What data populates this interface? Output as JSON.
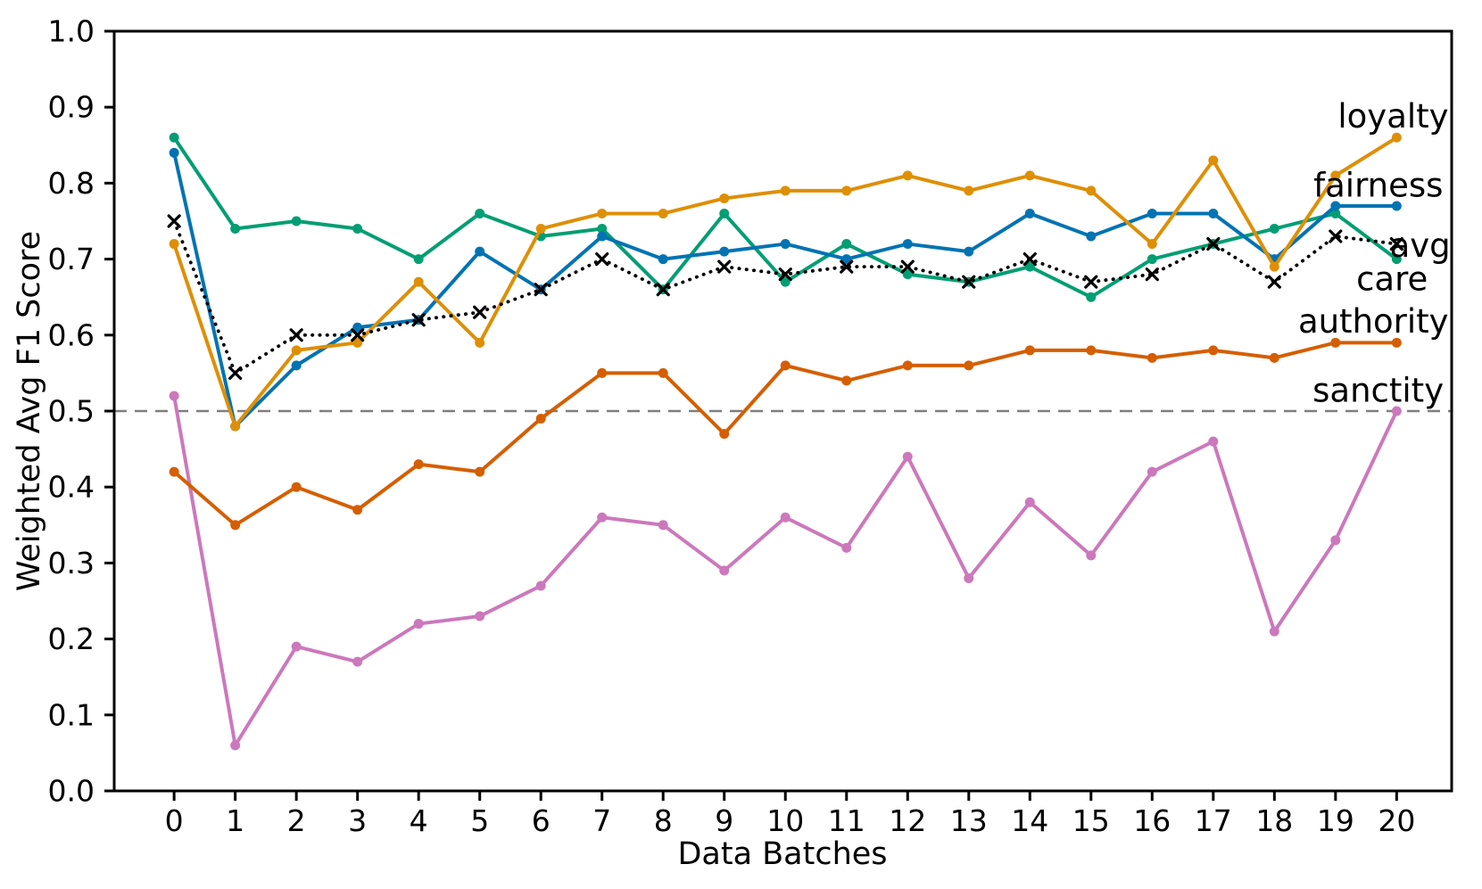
{
  "figure": {
    "background": "#ffffff",
    "spine_color": "#000000"
  },
  "chart_data": {
    "type": "line",
    "title": "",
    "xlabel": "Data Batches",
    "ylabel": "Weighted Avg F1 Score",
    "xlim": [
      -0.98,
      20.9
    ],
    "ylim": [
      0.0,
      1.0
    ],
    "xticks": [
      0,
      1,
      2,
      3,
      4,
      5,
      6,
      7,
      8,
      9,
      10,
      11,
      12,
      13,
      14,
      15,
      16,
      17,
      18,
      19,
      20
    ],
    "yticks": [
      0.0,
      0.1,
      0.2,
      0.3,
      0.4,
      0.5,
      0.6,
      0.7,
      0.8,
      0.9,
      1.0
    ],
    "grid": false,
    "legend_position": "inline-right-annotations",
    "reference_line": {
      "y": 0.5,
      "style": "dashed",
      "color": "#7f7f7f"
    },
    "x": [
      0,
      1,
      2,
      3,
      4,
      5,
      6,
      7,
      8,
      9,
      10,
      11,
      12,
      13,
      14,
      15,
      16,
      17,
      18,
      19,
      20
    ],
    "series": [
      {
        "name": "loyalty",
        "color": "#DE8F05",
        "line_style": "solid",
        "marker": "circle",
        "values": [
          0.72,
          0.48,
          0.58,
          0.59,
          0.67,
          0.59,
          0.74,
          0.76,
          0.76,
          0.78,
          0.79,
          0.79,
          0.81,
          0.79,
          0.81,
          0.79,
          0.72,
          0.83,
          0.69,
          0.81,
          0.86
        ],
        "label": {
          "text": "loyalty",
          "x": 20.85,
          "y": 0.888,
          "anchor": "end"
        }
      },
      {
        "name": "fairness",
        "color": "#0173B2",
        "line_style": "solid",
        "marker": "circle",
        "values": [
          0.84,
          0.48,
          0.56,
          0.61,
          0.62,
          0.71,
          0.66,
          0.73,
          0.7,
          0.71,
          0.72,
          0.7,
          0.72,
          0.71,
          0.76,
          0.73,
          0.76,
          0.76,
          0.7,
          0.77,
          0.77
        ],
        "label": {
          "text": "fairness",
          "x": 20.76,
          "y": 0.797,
          "anchor": "end"
        }
      },
      {
        "name": "avg",
        "color": "#000000",
        "line_style": "dotted",
        "marker": "x",
        "values": [
          0.75,
          0.55,
          0.6,
          0.6,
          0.62,
          0.63,
          0.66,
          0.7,
          0.66,
          0.69,
          0.68,
          0.69,
          0.69,
          0.67,
          0.7,
          0.67,
          0.68,
          0.72,
          0.67,
          0.73,
          0.72
        ],
        "label": {
          "text": "avg",
          "x": 20.88,
          "y": 0.718,
          "anchor": "end"
        }
      },
      {
        "name": "care",
        "color": "#029E73",
        "line_style": "solid",
        "marker": "circle",
        "values": [
          0.86,
          0.74,
          0.75,
          0.74,
          0.7,
          0.76,
          0.73,
          0.74,
          0.66,
          0.76,
          0.67,
          0.72,
          0.68,
          0.67,
          0.69,
          0.65,
          0.7,
          0.72,
          0.74,
          0.76,
          0.7
        ],
        "label": {
          "text": "care",
          "x": 20.51,
          "y": 0.674,
          "anchor": "end"
        }
      },
      {
        "name": "authority",
        "color": "#D55E00",
        "line_style": "solid",
        "marker": "circle",
        "values": [
          0.42,
          0.35,
          0.4,
          0.37,
          0.43,
          0.42,
          0.49,
          0.55,
          0.55,
          0.47,
          0.56,
          0.54,
          0.56,
          0.56,
          0.58,
          0.58,
          0.57,
          0.58,
          0.57,
          0.59,
          0.59
        ],
        "label": {
          "text": "authority",
          "x": 20.85,
          "y": 0.618,
          "anchor": "end"
        }
      },
      {
        "name": "sanctity",
        "color": "#CC78BC",
        "line_style": "solid",
        "marker": "circle",
        "values": [
          0.52,
          0.06,
          0.19,
          0.17,
          0.22,
          0.23,
          0.27,
          0.36,
          0.35,
          0.29,
          0.36,
          0.32,
          0.44,
          0.28,
          0.38,
          0.31,
          0.42,
          0.46,
          0.21,
          0.33,
          0.5
        ],
        "label": {
          "text": "sanctity",
          "x": 20.77,
          "y": 0.527,
          "anchor": "end"
        }
      }
    ],
    "zorder": [
      "sanctity",
      "authority",
      "care",
      "fairness",
      "loyalty",
      "avg"
    ]
  }
}
